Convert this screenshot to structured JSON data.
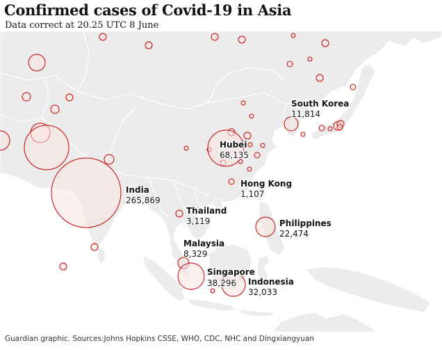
{
  "header": {
    "title": "Confirmed cases of Covid-19 in Asia",
    "subtitle": "Data correct at 20.25 UTC 8 June"
  },
  "footer": {
    "source": "Guardian graphic. Sources:Johns Hopkins CSSE, WHO, CDC, NHC and Dingxiangyuan"
  },
  "colors": {
    "bubble_stroke": "#c70000",
    "bubble_fill": "#fbe6e4",
    "land": "#ececec",
    "sea": "#ffffff",
    "border": "#ffffff",
    "text": "#121212"
  },
  "labelled_places": [
    {
      "name": "South Korea",
      "value": "11,814"
    },
    {
      "name": "Hubei",
      "value": "68,135"
    },
    {
      "name": "India",
      "value": "265,869"
    },
    {
      "name": "Hong Kong",
      "value": "1,107"
    },
    {
      "name": "Thailand",
      "value": "3,119"
    },
    {
      "name": "Philippines",
      "value": "22,474"
    },
    {
      "name": "Malaysia",
      "value": "8,329"
    },
    {
      "name": "Singapore",
      "value": "38,296"
    },
    {
      "name": "Indonesia",
      "value": "32,033"
    }
  ],
  "unlabelled_bubbles": 62
}
